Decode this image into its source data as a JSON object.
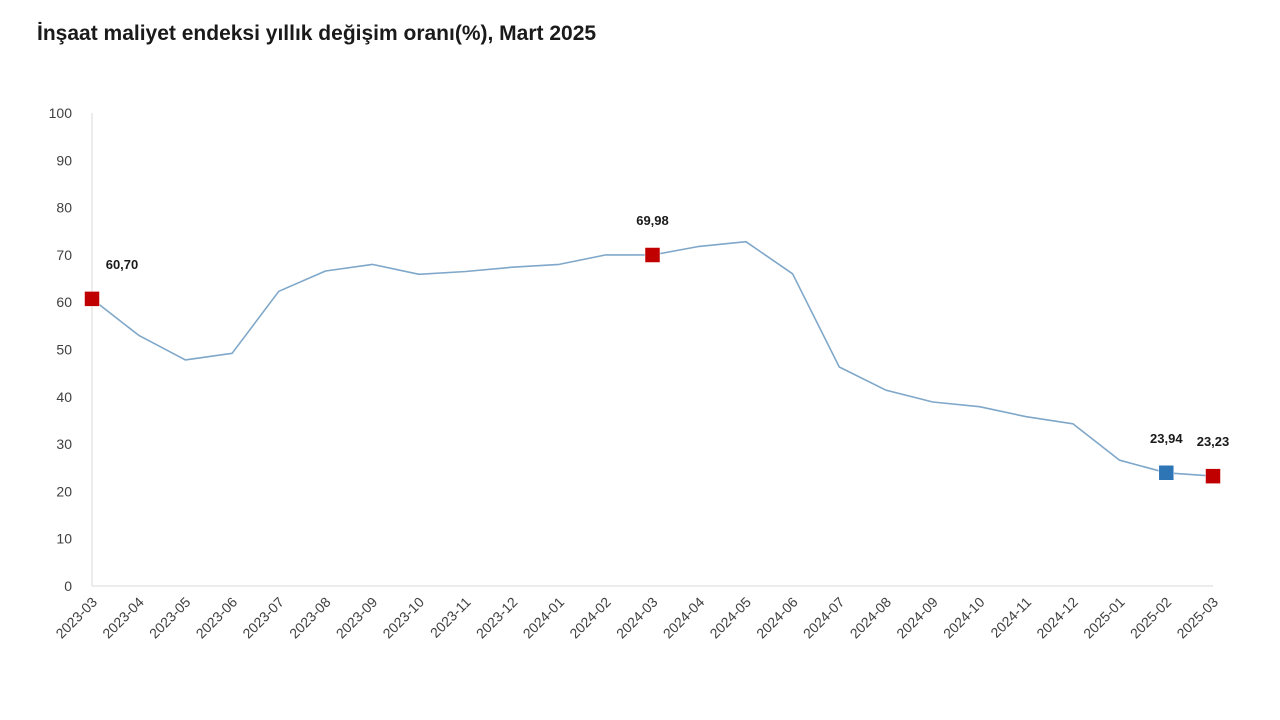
{
  "chart_data": {
    "type": "line",
    "title": "İnşaat maliyet endeksi yıllık değişim oranı(%), Mart 2025",
    "xlabel": "",
    "ylabel": "",
    "ylim": [
      0,
      100
    ],
    "yticks": [
      0,
      10,
      20,
      30,
      40,
      50,
      60,
      70,
      80,
      90,
      100
    ],
    "grid": false,
    "categories": [
      "2023-03",
      "2023-04",
      "2023-05",
      "2023-06",
      "2023-07",
      "2023-08",
      "2023-09",
      "2023-10",
      "2023-11",
      "2023-12",
      "2024-01",
      "2024-02",
      "2024-03",
      "2024-04",
      "2024-05",
      "2024-06",
      "2024-07",
      "2024-08",
      "2024-09",
      "2024-10",
      "2024-11",
      "2024-12",
      "2025-01",
      "2025-02",
      "2025-03"
    ],
    "series": [
      {
        "values": [
          60.7,
          53.0,
          47.8,
          49.2,
          62.3,
          66.6,
          68.0,
          65.9,
          66.5,
          67.4,
          68.0,
          70.0,
          69.98,
          71.8,
          72.8,
          66.0,
          46.3,
          41.4,
          38.9,
          37.9,
          35.8,
          34.3,
          26.6,
          23.94,
          23.23
        ],
        "color": "#7fa7c9"
      }
    ],
    "markers": [
      {
        "index": 0,
        "label": "60,70",
        "color": "#c00000"
      },
      {
        "index": 12,
        "label": "69,98",
        "color": "#c00000"
      },
      {
        "index": 23,
        "label": "23,94",
        "color": "#2e75b6"
      },
      {
        "index": 24,
        "label": "23,23",
        "color": "#c00000"
      }
    ]
  }
}
